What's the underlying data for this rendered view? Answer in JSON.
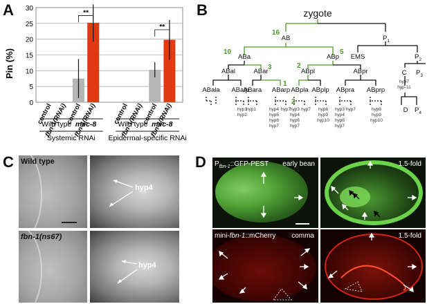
{
  "panels": {
    "a": "A",
    "b": "B",
    "c": "C",
    "d": "D"
  },
  "chart_data": {
    "type": "bar",
    "ylabel": "Pin (%)",
    "ylim": [
      0,
      30
    ],
    "yticks": [
      "0",
      "5",
      "10",
      "15",
      "20",
      "25",
      "30"
    ],
    "categories": [
      "control",
      "fbn-1(RNAi)",
      "control",
      "fbn-1(RNAi)",
      "control",
      "fbn-1(RNAi)",
      "control",
      "fbn-1(RNAi)"
    ],
    "values": [
      0,
      0,
      7.5,
      25.2,
      0,
      0,
      10.3,
      19.8
    ],
    "errors": [
      0,
      0,
      6.2,
      6.0,
      0,
      0,
      2.4,
      6.3
    ],
    "colors": [
      "#b5b5b5",
      "#e03a12",
      "#b5b5b5",
      "#e03a12",
      "#b5b5b5",
      "#e03a12",
      "#b5b5b5",
      "#e03a12"
    ],
    "significance": "**",
    "groups": [
      "Wild type",
      "mec-8",
      "Wild type",
      "mec-8"
    ],
    "supergroups": [
      "Systemic RNAi",
      "Epidermal-specific RNAi"
    ]
  },
  "lineage": {
    "zygote": "zygote",
    "AB": "AB",
    "P1_main": "P",
    "P1_sub": "1",
    "ABa": "ABa",
    "ABp": "ABp",
    "EMS": "EMS",
    "P2_main": "P",
    "P2_sub": "2",
    "ABal": "ABal",
    "ABar": "ABar",
    "ABpl": "ABpl",
    "ABpr": "ABpr",
    "C": "C",
    "P3_main": "P",
    "P3_sub": "3",
    "D": "D",
    "P4_main": "P",
    "P4_sub": "4",
    "ABala": "ABala",
    "ABalp": "ABalp",
    "ABara": "ABara",
    "ABarp": "ABarp",
    "ABpla": "ABpla",
    "ABplp": "ABplp",
    "ABpra": "ABpra",
    "ABprp": "ABprp",
    "n16": "16",
    "n10": "10",
    "n5": "5",
    "n3": "3",
    "n2a": "2",
    "n1": "1",
    "n2b": "2",
    "hyp_alp": [
      "hyp1",
      "hyp2"
    ],
    "hyp_ara": [
      "hyp1"
    ],
    "hyp_arp1": [
      "hyp4",
      "hyp5",
      "hyp6",
      "hyp7"
    ],
    "hyp_arp2": [
      "hyp7"
    ],
    "hyp_pla1": [
      "hyp3",
      "hyp4",
      "hyp6",
      "hyp7"
    ],
    "hyp_pla2": [
      "hyp7"
    ],
    "hyp_plp": [
      "hyp8",
      "hyp9",
      "hyp10"
    ],
    "hyp_pra1": [
      "hyp3",
      "hyp4",
      "hyp6",
      "hyp7"
    ],
    "hyp_pra2": [
      "hyp7"
    ],
    "hyp_prp": [
      "hyp8",
      "hyp9",
      "hyp10"
    ],
    "hyp_C": [
      "hyp7",
      "hyp-11"
    ]
  },
  "panel_c": {
    "wt": "Wild type",
    "mut": "fbn-1(ns67)",
    "hyp4_top": "hyp4",
    "hyp4_bottom": "hyp4"
  },
  "panel_d": {
    "gfp_label_p": "P",
    "gfp_label_sub": "fbn-1",
    "gfp_label_rest": "::GFP-PEST",
    "early_bean": "early bean",
    "fold1": "1.5-fold",
    "mini_label_a": "mini-",
    "mini_label_b": "fbn-1",
    "mini_label_c": "::mCherry",
    "comma": "comma",
    "fold2": "1.5-fold"
  }
}
